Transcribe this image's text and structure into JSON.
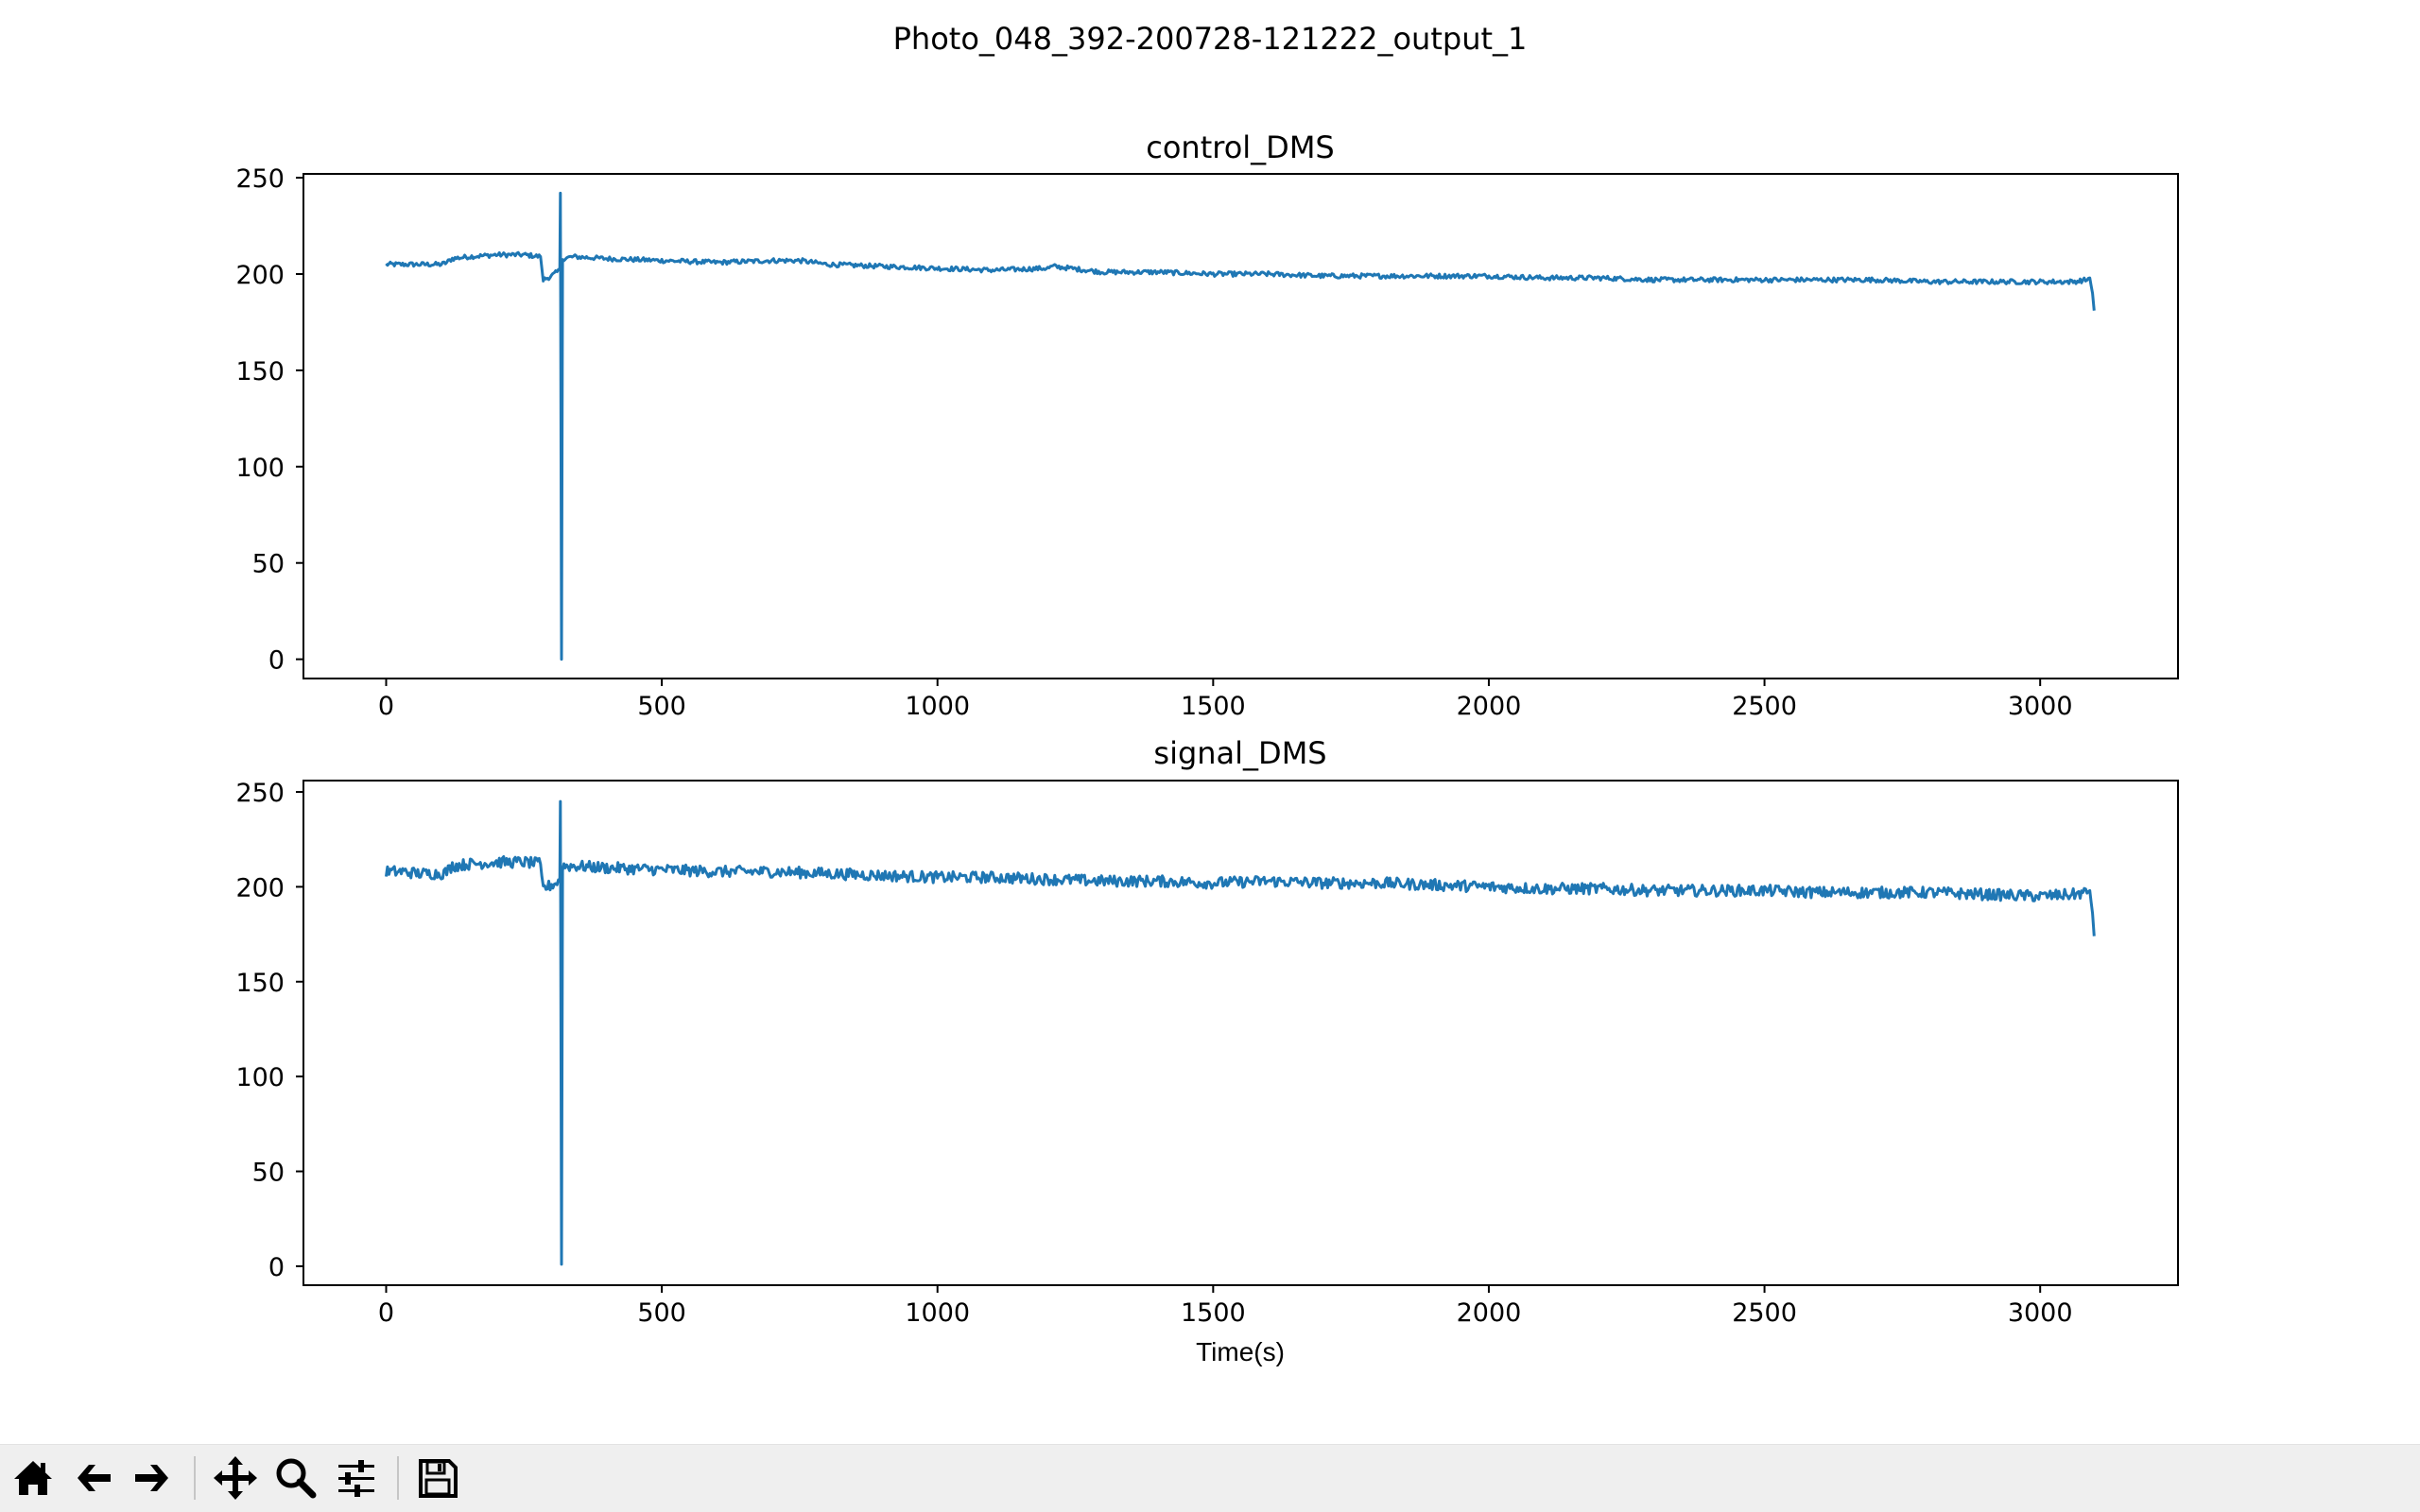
{
  "figure": {
    "suptitle": "Photo_048_392-200728-121222_output_1",
    "line_color": "#1f77b4"
  },
  "toolbar": {
    "buttons": [
      {
        "id": "home",
        "icon": "home-icon"
      },
      {
        "id": "back",
        "icon": "arrow-left-icon"
      },
      {
        "id": "forward",
        "icon": "arrow-right-icon"
      },
      {
        "id": "pan",
        "icon": "move-icon"
      },
      {
        "id": "zoom",
        "icon": "magnifier-icon"
      },
      {
        "id": "configure",
        "icon": "sliders-icon"
      },
      {
        "id": "save",
        "icon": "floppy-disk-icon"
      }
    ]
  },
  "chart_data": [
    {
      "type": "line",
      "title": "control_DMS",
      "xlabel": "",
      "ylabel": "",
      "xlim": [
        -150,
        3250
      ],
      "ylim": [
        -10,
        252
      ],
      "xticks": [
        0,
        500,
        1000,
        1500,
        2000,
        2500,
        3000
      ],
      "yticks": [
        0,
        50,
        100,
        150,
        200,
        250
      ],
      "grid": false,
      "noise_amplitude": 1.2,
      "series": [
        {
          "x": [
            0,
            30,
            60,
            100,
            110,
            120,
            150,
            200,
            250,
            280,
            285,
            300,
            315,
            316,
            318,
            320,
            340,
            400,
            500,
            600,
            700,
            750,
            800,
            900,
            1000,
            1100,
            1200,
            1210,
            1300,
            1400,
            1500,
            1600,
            1700,
            1800,
            1900,
            2000,
            2100,
            2200,
            2300,
            2400,
            2500,
            2600,
            2700,
            2800,
            2900,
            3000,
            3060,
            3085,
            3090,
            3095,
            3098
          ],
          "y": [
            205,
            205,
            205,
            205,
            206,
            208,
            209,
            210,
            210,
            209,
            197,
            199,
            202,
            242,
            0,
            208,
            209,
            208,
            207,
            206,
            207,
            207,
            205,
            204,
            203,
            202,
            203,
            204,
            201,
            201,
            200,
            200,
            199,
            199,
            199,
            199,
            198,
            198,
            197,
            197,
            197,
            197,
            197,
            196,
            196,
            196,
            196,
            197,
            198,
            190,
            181
          ]
        }
      ]
    },
    {
      "type": "line",
      "title": "signal_DMS",
      "xlabel": "Time(s)",
      "ylabel": "",
      "xlim": [
        -150,
        3250
      ],
      "ylim": [
        -10,
        256
      ],
      "xticks": [
        0,
        500,
        1000,
        1500,
        2000,
        2500,
        3000
      ],
      "yticks": [
        0,
        50,
        100,
        150,
        200,
        250
      ],
      "grid": false,
      "noise_amplitude": 3,
      "series": [
        {
          "x": [
            0,
            30,
            60,
            100,
            110,
            120,
            150,
            200,
            250,
            280,
            285,
            300,
            315,
            316,
            318,
            320,
            340,
            400,
            500,
            600,
            700,
            800,
            900,
            1000,
            1100,
            1200,
            1300,
            1400,
            1500,
            1600,
            1700,
            1800,
            1900,
            2000,
            2100,
            2200,
            2300,
            2400,
            2500,
            2600,
            2700,
            2800,
            2900,
            3000,
            3060,
            3085,
            3090,
            3095,
            3098
          ],
          "y": [
            208,
            208,
            207,
            207,
            208,
            211,
            212,
            213,
            213,
            212,
            199,
            201,
            203,
            245,
            1,
            211,
            211,
            210,
            209,
            208,
            208,
            207,
            206,
            205,
            205,
            204,
            203,
            203,
            202,
            203,
            202,
            202,
            201,
            200,
            199,
            199,
            198,
            198,
            198,
            197,
            197,
            197,
            196,
            195,
            196,
            197,
            198,
            186,
            174
          ]
        }
      ]
    }
  ]
}
